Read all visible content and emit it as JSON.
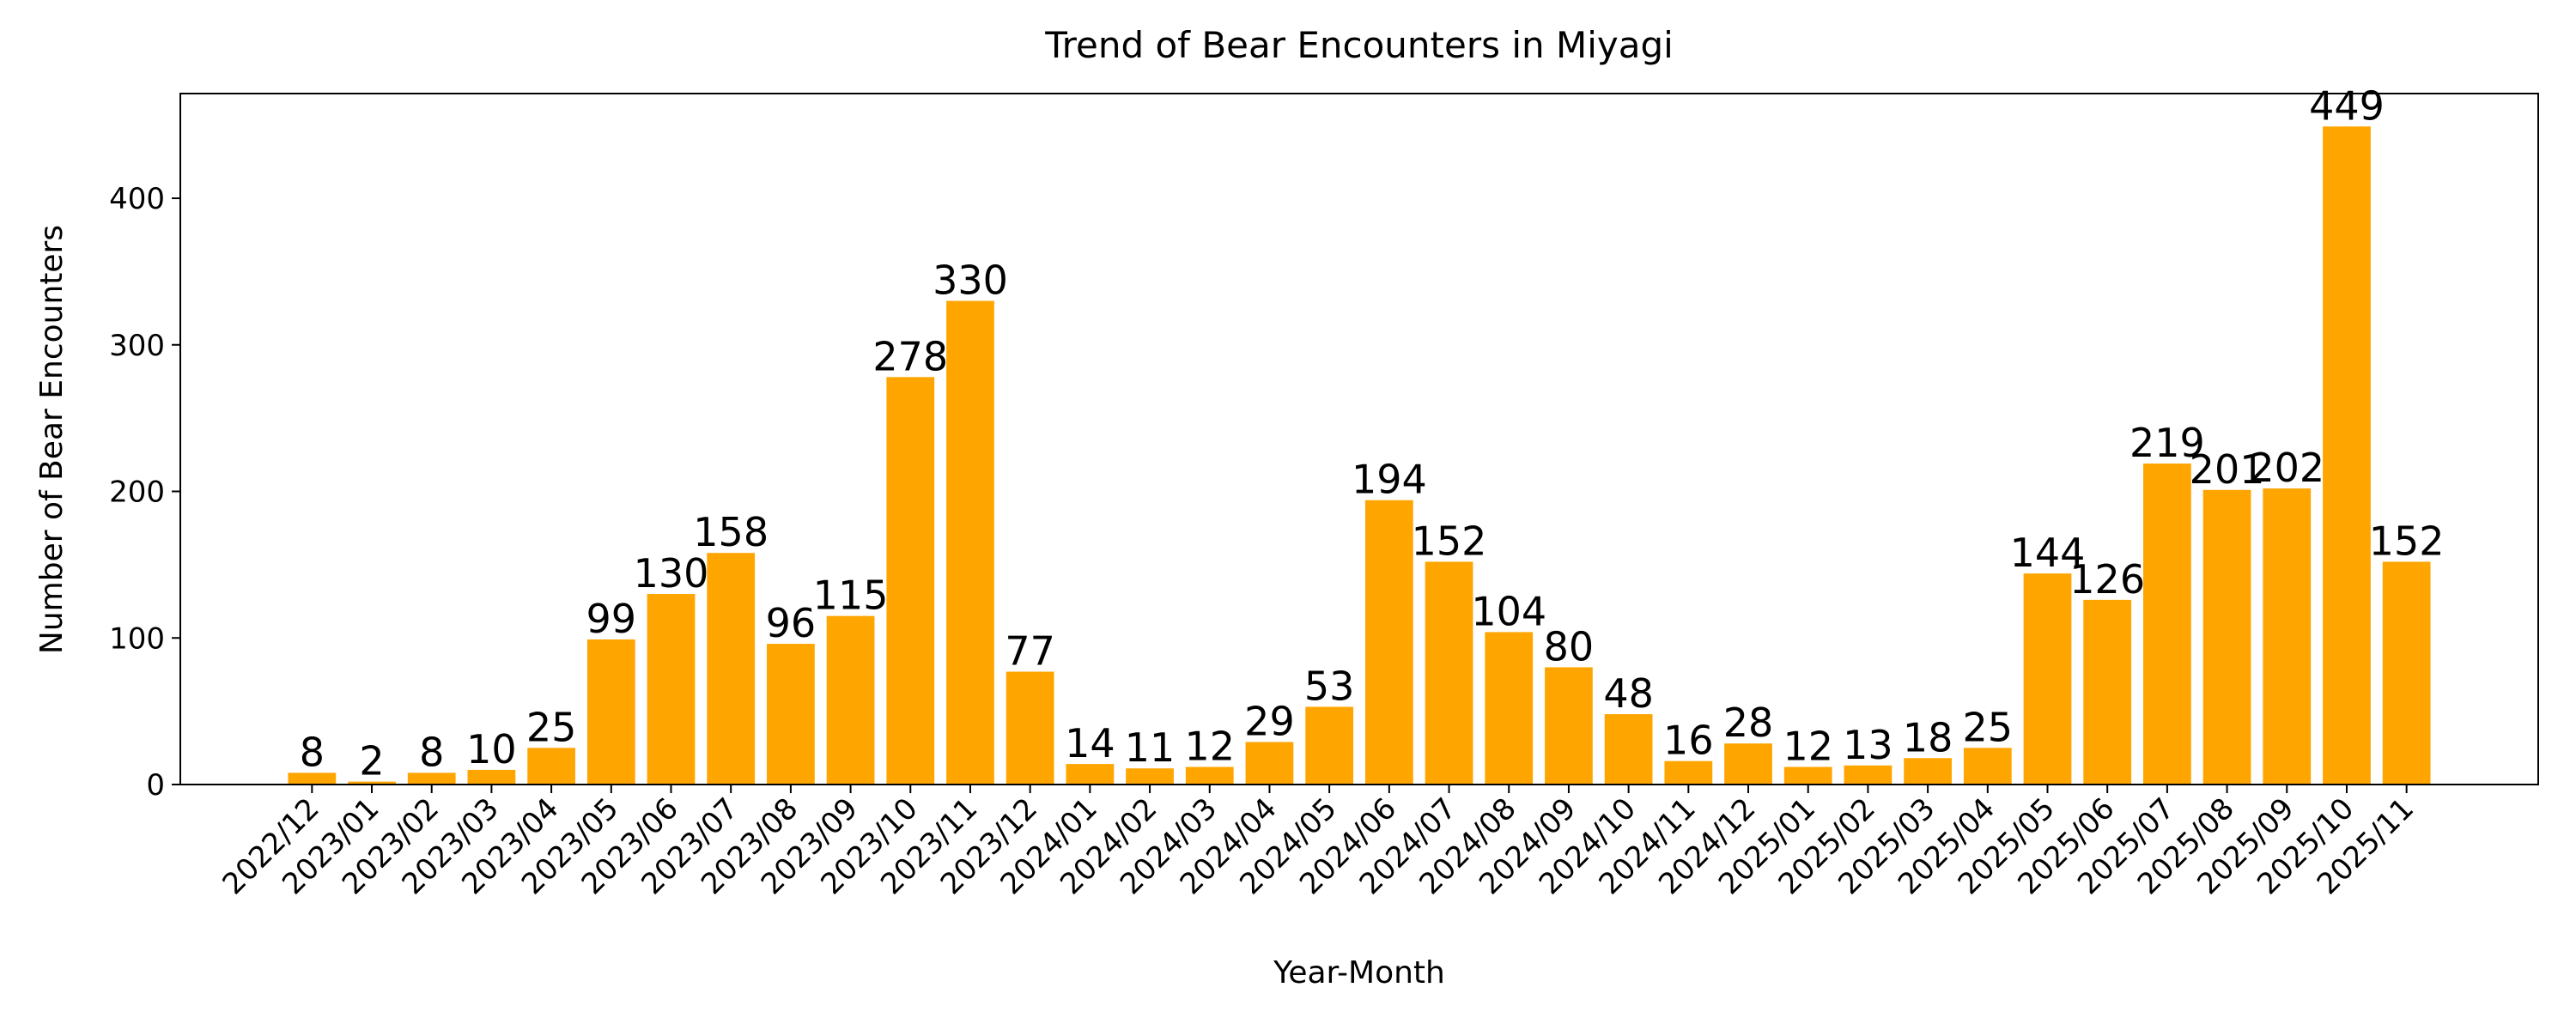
{
  "chart_data": {
    "type": "bar",
    "title": "Trend of Bear Encounters in Miyagi",
    "x_label": "Year-Month",
    "y_label": "Number of Bear Encounters",
    "categories": [
      "2022/12",
      "2023/01",
      "2023/02",
      "2023/03",
      "2023/04",
      "2023/05",
      "2023/06",
      "2023/07",
      "2023/08",
      "2023/09",
      "2023/10",
      "2023/11",
      "2023/12",
      "2024/01",
      "2024/02",
      "2024/03",
      "2024/04",
      "2024/05",
      "2024/06",
      "2024/07",
      "2024/08",
      "2024/09",
      "2024/10",
      "2024/11",
      "2024/12",
      "2025/01",
      "2025/02",
      "2025/03",
      "2025/04",
      "2025/05",
      "2025/06",
      "2025/07",
      "2025/08",
      "2025/09",
      "2025/10",
      "2025/11"
    ],
    "values": [
      8,
      2,
      8,
      10,
      25,
      99,
      130,
      158,
      96,
      115,
      278,
      330,
      77,
      14,
      11,
      12,
      29,
      53,
      194,
      152,
      104,
      80,
      48,
      16,
      28,
      12,
      13,
      18,
      25,
      144,
      126,
      219,
      201,
      202,
      449,
      152
    ],
    "color": "#ffa500",
    "ylim": [
      0,
      471.45
    ],
    "yticks": [
      0,
      100,
      200,
      300,
      400
    ],
    "grid": false
  }
}
